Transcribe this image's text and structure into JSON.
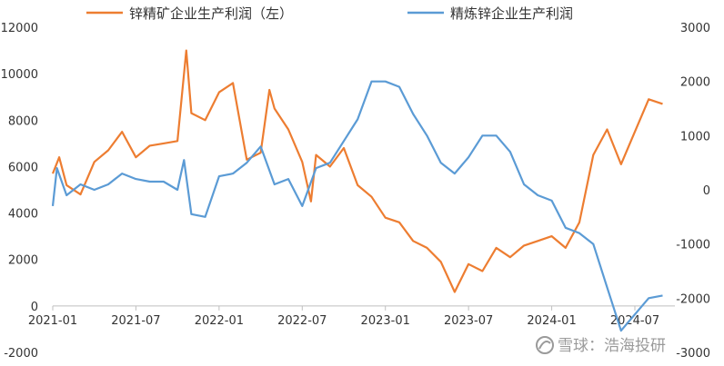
{
  "chart_data": {
    "type": "line",
    "x_labels": [
      "2021-01",
      "2021-07",
      "2022-01",
      "2022-07",
      "2023-01",
      "2023-07",
      "2024-01",
      "2024-07"
    ],
    "y_left": {
      "min": -2000,
      "max": 12000,
      "ticks": [
        "-2000",
        "0",
        "2000",
        "4000",
        "6000",
        "8000",
        "10000",
        "12000"
      ]
    },
    "y_right": {
      "min": -3000,
      "max": 3000,
      "ticks": [
        "-3000",
        "-2000",
        "-1000",
        "0",
        "1000",
        "2000",
        "3000"
      ]
    },
    "grid": false,
    "legend_position": "top",
    "series": [
      {
        "name": "锌精矿企业生产利润（左）",
        "axis": "left",
        "color": "#ED7D31",
        "points": [
          [
            "2021-01",
            5700
          ],
          [
            "2021-01-15",
            6400
          ],
          [
            "2021-02",
            5200
          ],
          [
            "2021-03",
            4800
          ],
          [
            "2021-04",
            6200
          ],
          [
            "2021-05",
            6700
          ],
          [
            "2021-06",
            7500
          ],
          [
            "2021-07",
            6400
          ],
          [
            "2021-08",
            6900
          ],
          [
            "2021-09",
            7000
          ],
          [
            "2021-10",
            7100
          ],
          [
            "2021-10-20",
            11000
          ],
          [
            "2021-11",
            8300
          ],
          [
            "2021-12",
            8000
          ],
          [
            "2022-01",
            9200
          ],
          [
            "2022-02",
            9600
          ],
          [
            "2022-03",
            6300
          ],
          [
            "2022-04",
            6600
          ],
          [
            "2022-04-20",
            9300
          ],
          [
            "2022-05",
            8500
          ],
          [
            "2022-06",
            7600
          ],
          [
            "2022-07",
            6200
          ],
          [
            "2022-07-20",
            4500
          ],
          [
            "2022-08",
            6500
          ],
          [
            "2022-09",
            6000
          ],
          [
            "2022-10",
            6800
          ],
          [
            "2022-11",
            5200
          ],
          [
            "2022-12",
            4700
          ],
          [
            "2023-01",
            3800
          ],
          [
            "2023-02",
            3600
          ],
          [
            "2023-03",
            2800
          ],
          [
            "2023-04",
            2500
          ],
          [
            "2023-05",
            1900
          ],
          [
            "2023-06",
            600
          ],
          [
            "2023-07",
            1800
          ],
          [
            "2023-08",
            1500
          ],
          [
            "2023-09",
            2500
          ],
          [
            "2023-10",
            2100
          ],
          [
            "2023-11",
            2600
          ],
          [
            "2023-12",
            2800
          ],
          [
            "2024-01",
            3000
          ],
          [
            "2024-02",
            2500
          ],
          [
            "2024-03",
            3600
          ],
          [
            "2024-04",
            6500
          ],
          [
            "2024-05",
            7600
          ],
          [
            "2024-06",
            6100
          ],
          [
            "2024-07",
            7500
          ],
          [
            "2024-08",
            8900
          ],
          [
            "2024-09",
            8700
          ]
        ]
      },
      {
        "name": "精炼锌企业生产利润",
        "axis": "right",
        "color": "#5B9BD5",
        "points": [
          [
            "2021-01",
            -300
          ],
          [
            "2021-01-10",
            400
          ],
          [
            "2021-02",
            -100
          ],
          [
            "2021-03",
            100
          ],
          [
            "2021-04",
            0
          ],
          [
            "2021-05",
            100
          ],
          [
            "2021-06",
            300
          ],
          [
            "2021-07",
            200
          ],
          [
            "2021-08",
            150
          ],
          [
            "2021-09",
            150
          ],
          [
            "2021-10",
            0
          ],
          [
            "2021-10-15",
            550
          ],
          [
            "2021-11",
            -450
          ],
          [
            "2021-12",
            -500
          ],
          [
            "2022-01",
            250
          ],
          [
            "2022-02",
            300
          ],
          [
            "2022-03",
            500
          ],
          [
            "2022-04",
            800
          ],
          [
            "2022-05",
            100
          ],
          [
            "2022-06",
            200
          ],
          [
            "2022-07",
            -300
          ],
          [
            "2022-08",
            400
          ],
          [
            "2022-09",
            500
          ],
          [
            "2022-10",
            900
          ],
          [
            "2022-11",
            1300
          ],
          [
            "2022-12",
            2000
          ],
          [
            "2023-01",
            2000
          ],
          [
            "2023-02",
            1900
          ],
          [
            "2023-03",
            1400
          ],
          [
            "2023-04",
            1000
          ],
          [
            "2023-05",
            500
          ],
          [
            "2023-06",
            300
          ],
          [
            "2023-07",
            600
          ],
          [
            "2023-08",
            1000
          ],
          [
            "2023-09",
            1000
          ],
          [
            "2023-10",
            700
          ],
          [
            "2023-11",
            100
          ],
          [
            "2023-12",
            -100
          ],
          [
            "2024-01",
            -200
          ],
          [
            "2024-02",
            -700
          ],
          [
            "2024-03",
            -800
          ],
          [
            "2024-04",
            -1000
          ],
          [
            "2024-05",
            -1800
          ],
          [
            "2024-06",
            -2600
          ],
          [
            "2024-07",
            -2300
          ],
          [
            "2024-08",
            -2000
          ],
          [
            "2024-09",
            -1950
          ]
        ]
      }
    ]
  },
  "watermark": {
    "text": "雪球：浩海投研"
  }
}
